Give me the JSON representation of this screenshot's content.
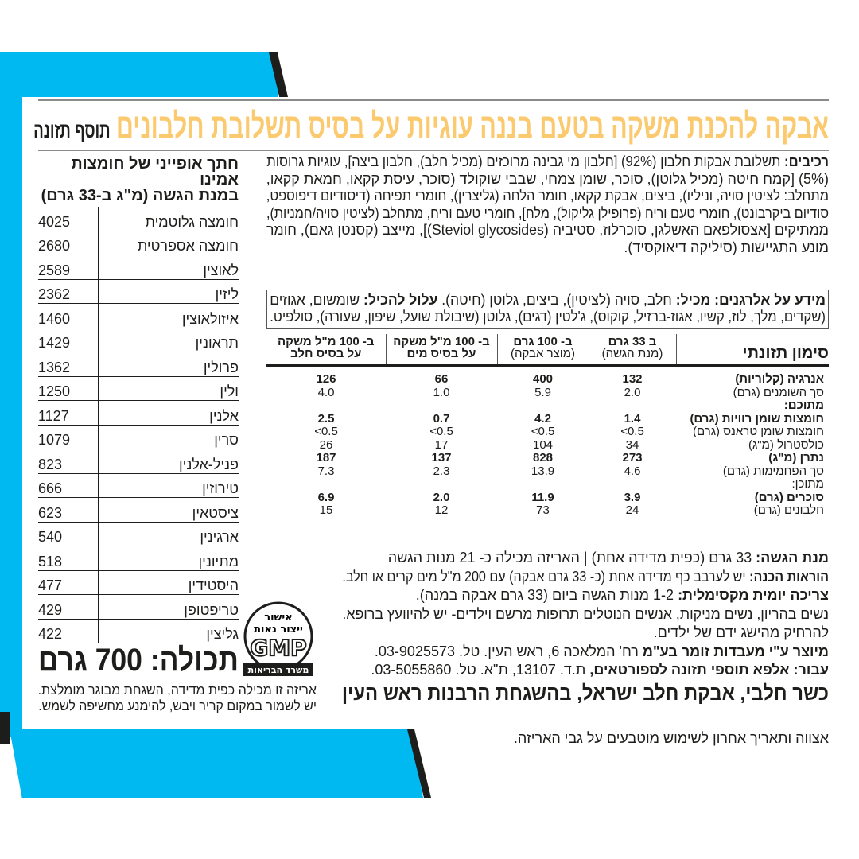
{
  "colors": {
    "brand_blue": "#00b9f0",
    "title_yellow": "#fbc96e",
    "text": "#1d1d1b"
  },
  "title": {
    "main": "אבקה להכנת משקה בטעם בננה עוגיות על בסיס תשלובת חלבונים",
    "tag": "תוסף תזונה"
  },
  "ingredients": {
    "label": "רכיבים:",
    "lines": [
      "תשלובת אבקות חלבון (92%) [חלבון מי גבינה מרוכזים (מכיל חלב), חלבון ביצה], עוגיות גרוסות",
      "(5%) [קמח חיטה (מכיל גלוטן), סוכר, שומן צמחי, שבבי שוקולד (סוכר, עיסת קקאו, חמאת קקאו,",
      "מתחלב: לציטין סויה, וניליו), ביצים, אבקת קקאו, חומר הלחה (גליצרין), חומרי תפיחה (דיסודיום דיפוספט,",
      "סודיום ביקרבונט), חומרי טעם וריח (פרופילן גליקול), מלח], חומרי טעם וריח, מתחלב (לציטין סויה/חמניות),",
      "ממתיקים [אצסולפאם האשלגן, סוכרלוז, סטיביה (Steviol glycosides)], מייצב (קסנטן גאם), חומר",
      "מונע התגיישות (סיליקה דיאוקסיד)."
    ]
  },
  "allergens": {
    "label": "מידע על אלרגנים:",
    "contains_label": "מכיל:",
    "contains": "חלב, סויה (לציטין), ביצים, גלוטן (חיטה).",
    "may_contain_label": "עלול להכיל:",
    "may_contain_line1": "שומשום, אגוזים",
    "line2": "(שקדים, מלך, לוז, קשיו, אגוז-ברזיל, קוקוס), ג'לטין (דגים), גלוטן (שיבולת שועל, שיפון, שעורה), סולפיט."
  },
  "nutrition": {
    "header": "סימון תזונתי",
    "columns": [
      {
        "main": "ב 33 גרם",
        "sub": "(מנת הגשה)"
      },
      {
        "main": "ב- 100 גרם",
        "sub": "(מוצר אבקה)"
      },
      {
        "main": "ב- 100 מ\"ל משקה",
        "sub": "על בסיס מים"
      },
      {
        "main": "ב- 100 מ\"ל משקה",
        "sub": "על בסיס חלב"
      }
    ],
    "rows": [
      {
        "label": "אנרגיה (קלוריות)",
        "bold": true,
        "values": [
          "132",
          "400",
          "66",
          "126"
        ]
      },
      {
        "label": "סך השומנים (גרם)",
        "bold": false,
        "values": [
          "2.0",
          "5.9",
          "1.0",
          "4.0"
        ]
      },
      {
        "label": "מתוכם:",
        "bold": true,
        "values": [
          "",
          "",
          "",
          ""
        ]
      },
      {
        "label": "חומצות שומן רוויות (גרם)",
        "bold": true,
        "values": [
          "1.4",
          "4.2",
          "0.7",
          "2.5"
        ]
      },
      {
        "label": "חומצות שומן טראנס (גרם)",
        "bold": false,
        "values": [
          "0.5>",
          "0.5>",
          "0.5>",
          "0.5>"
        ]
      },
      {
        "label": "כולסטרול (מ\"ג)",
        "bold": false,
        "values": [
          "34",
          "104",
          "17",
          "26"
        ]
      },
      {
        "label": "נתרן (מ\"ג)",
        "bold": true,
        "values": [
          "273",
          "828",
          "137",
          "187"
        ]
      },
      {
        "label": "סך הפחמימות (גרם)",
        "bold": false,
        "values": [
          "4.6",
          "13.9",
          "2.3",
          "7.3"
        ]
      },
      {
        "label": "מתוכן:",
        "bold": false,
        "values": [
          "",
          "",
          "",
          ""
        ]
      },
      {
        "label": "סוכרים (גרם)",
        "bold": true,
        "values": [
          "3.9",
          "11.9",
          "2.0",
          "6.9"
        ]
      },
      {
        "label": "חלבונים (גרם)",
        "bold": false,
        "values": [
          "24",
          "73",
          "12",
          "15"
        ]
      }
    ]
  },
  "amino": {
    "title_line1": "חתך אופייני של חומצות אמינו",
    "title_line2": "במנת הגשה (מ\"ג ב-33 גרם)",
    "rows": [
      {
        "name": "חומצה גלוטמית",
        "value": "4025"
      },
      {
        "name": "חומצה אספרטית",
        "value": "2680"
      },
      {
        "name": "לאוצין",
        "value": "2589"
      },
      {
        "name": "ליזין",
        "value": "2362"
      },
      {
        "name": "איזולאוצין",
        "value": "1460"
      },
      {
        "name": "תראונין",
        "value": "1429"
      },
      {
        "name": "פרולין",
        "value": "1362"
      },
      {
        "name": "ולין",
        "value": "1250"
      },
      {
        "name": "אלנין",
        "value": "1127"
      },
      {
        "name": "סרין",
        "value": "1079"
      },
      {
        "name": "פניל-אלנין",
        "value": "823"
      },
      {
        "name": "טירוזין",
        "value": "666"
      },
      {
        "name": "ציסטאין",
        "value": "623"
      },
      {
        "name": "ארגינין",
        "value": "540"
      },
      {
        "name": "מתיונין",
        "value": "518"
      },
      {
        "name": "היסטידין",
        "value": "477"
      },
      {
        "name": "טריפטופן",
        "value": "429"
      },
      {
        "name": "גליצין",
        "value": "422"
      }
    ]
  },
  "gmp_seal": {
    "line1": "אישור",
    "line2": "ייצור נאות",
    "logo": "GMP",
    "footer": "משרד הבריאות"
  },
  "net_weight": "תכולה: 700 גרם",
  "storage": [
    "אריזה זו מכילה כפית מדידה, השגחת מבוגר מומלצת.",
    "יש לשמור במקום קריר ויבש, להימנע מחשיפה לשמש."
  ],
  "info": {
    "serving_label": "מנת הגשה:",
    "serving": "33 גרם (כפית מדידה אחת) | האריזה מכילה כ- 21 מנות הגשה",
    "prep_label": "הוראות הכנה:",
    "prep": "יש לערבב כף מדידה אחת (כ- 33 גרם אבקה) עם 200 מ\"ל מים קרים או חלב.",
    "max_label": "צריכה יומית מקסימלית:",
    "max": "1-2 מנות הגשה ביום (33 גרם אבקה במנה).",
    "warning": "נשים בהריון, נשים מניקות, אנשים הנוטלים תרופות מרשם וילדים- יש להיוועץ ברופא.",
    "children": "להרחיק מהישג ידם של ילדים.",
    "manufacturer_label": "מיוצר ע\"י מעבדות זומר בע\"מ",
    "manufacturer": "רח' המלאכה 6, ראש העין. טל. 03-9025573.",
    "for_label": "עבור:",
    "for_bold": "אלפא תוספי תזונה לספורטאים,",
    "for": "ת.ד. 13107, ת\"א. טל. 03-5055860.",
    "kosher": "כשר חלבי, אבקת חלב ישראל, בהשגחת הרבנות ראש העין"
  },
  "batch": "אצווה ותאריך אחרון לשימוש מוטבעים על גבי האריזה."
}
